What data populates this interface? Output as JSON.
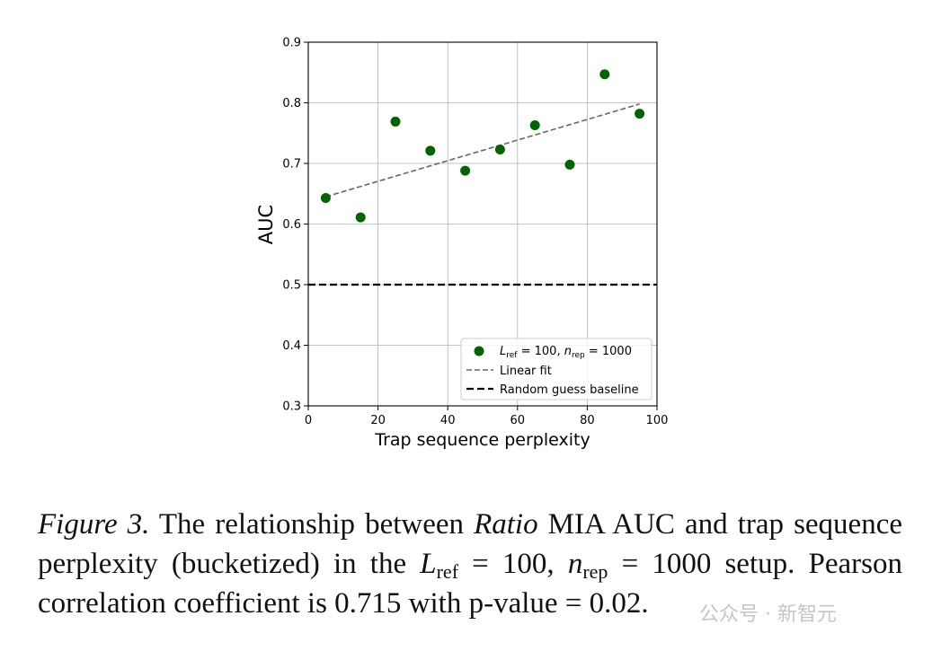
{
  "chart_data": {
    "type": "scatter",
    "title": "",
    "xlabel": "Trap sequence perplexity",
    "ylabel": "AUC",
    "xlim": [
      0,
      100
    ],
    "ylim": [
      0.3,
      0.9
    ],
    "xticks": [
      0,
      20,
      40,
      60,
      80,
      100
    ],
    "yticks": [
      0.3,
      0.4,
      0.5,
      0.6,
      0.7,
      0.8,
      0.9
    ],
    "xtick_labels": [
      "0",
      "20",
      "40",
      "60",
      "80",
      "100"
    ],
    "ytick_labels": [
      "0.3",
      "0.4",
      "0.5",
      "0.6",
      "0.7",
      "0.8",
      "0.9"
    ],
    "grid": true,
    "legend_position": "lower-right",
    "series": [
      {
        "name": "L_ref = 100, n_rep = 1000",
        "kind": "points",
        "color": "#006400",
        "x": [
          5,
          15,
          25,
          35,
          45,
          55,
          65,
          75,
          85,
          95
        ],
        "y": [
          0.643,
          0.611,
          0.769,
          0.721,
          0.688,
          0.723,
          0.763,
          0.698,
          0.847,
          0.782
        ]
      },
      {
        "name": "Linear fit",
        "kind": "dashed-line",
        "color": "#666666",
        "x": [
          5,
          95
        ],
        "y": [
          0.645,
          0.798
        ]
      },
      {
        "name": "Random guess baseline",
        "kind": "dashed-line",
        "color": "#000000",
        "x": [
          0,
          100
        ],
        "y": [
          0.5,
          0.5
        ]
      }
    ],
    "legend": {
      "entry1_L": "L",
      "entry1_ref": "ref",
      "entry1_mid": " = 100, ",
      "entry1_n": "n",
      "entry1_rep": "rep",
      "entry1_end": " = 1000",
      "entry2": "Linear fit",
      "entry3": "Random guess baseline"
    }
  },
  "caption": {
    "figure_label": "Figure 3.",
    "text1": " The relationship between ",
    "ratio": "Ratio",
    "text2": " MIA AUC and trap sequence perplexity (bucketized) in the ",
    "L": "L",
    "ref": "ref",
    "eq1": " = 100, ",
    "n": "n",
    "rep": "rep",
    "eq2": " = 1000",
    "text3": " setup. Pearson correlation coefficient is 0.715 with p-value = 0.02."
  },
  "watermark": "公众号 · 新智元"
}
